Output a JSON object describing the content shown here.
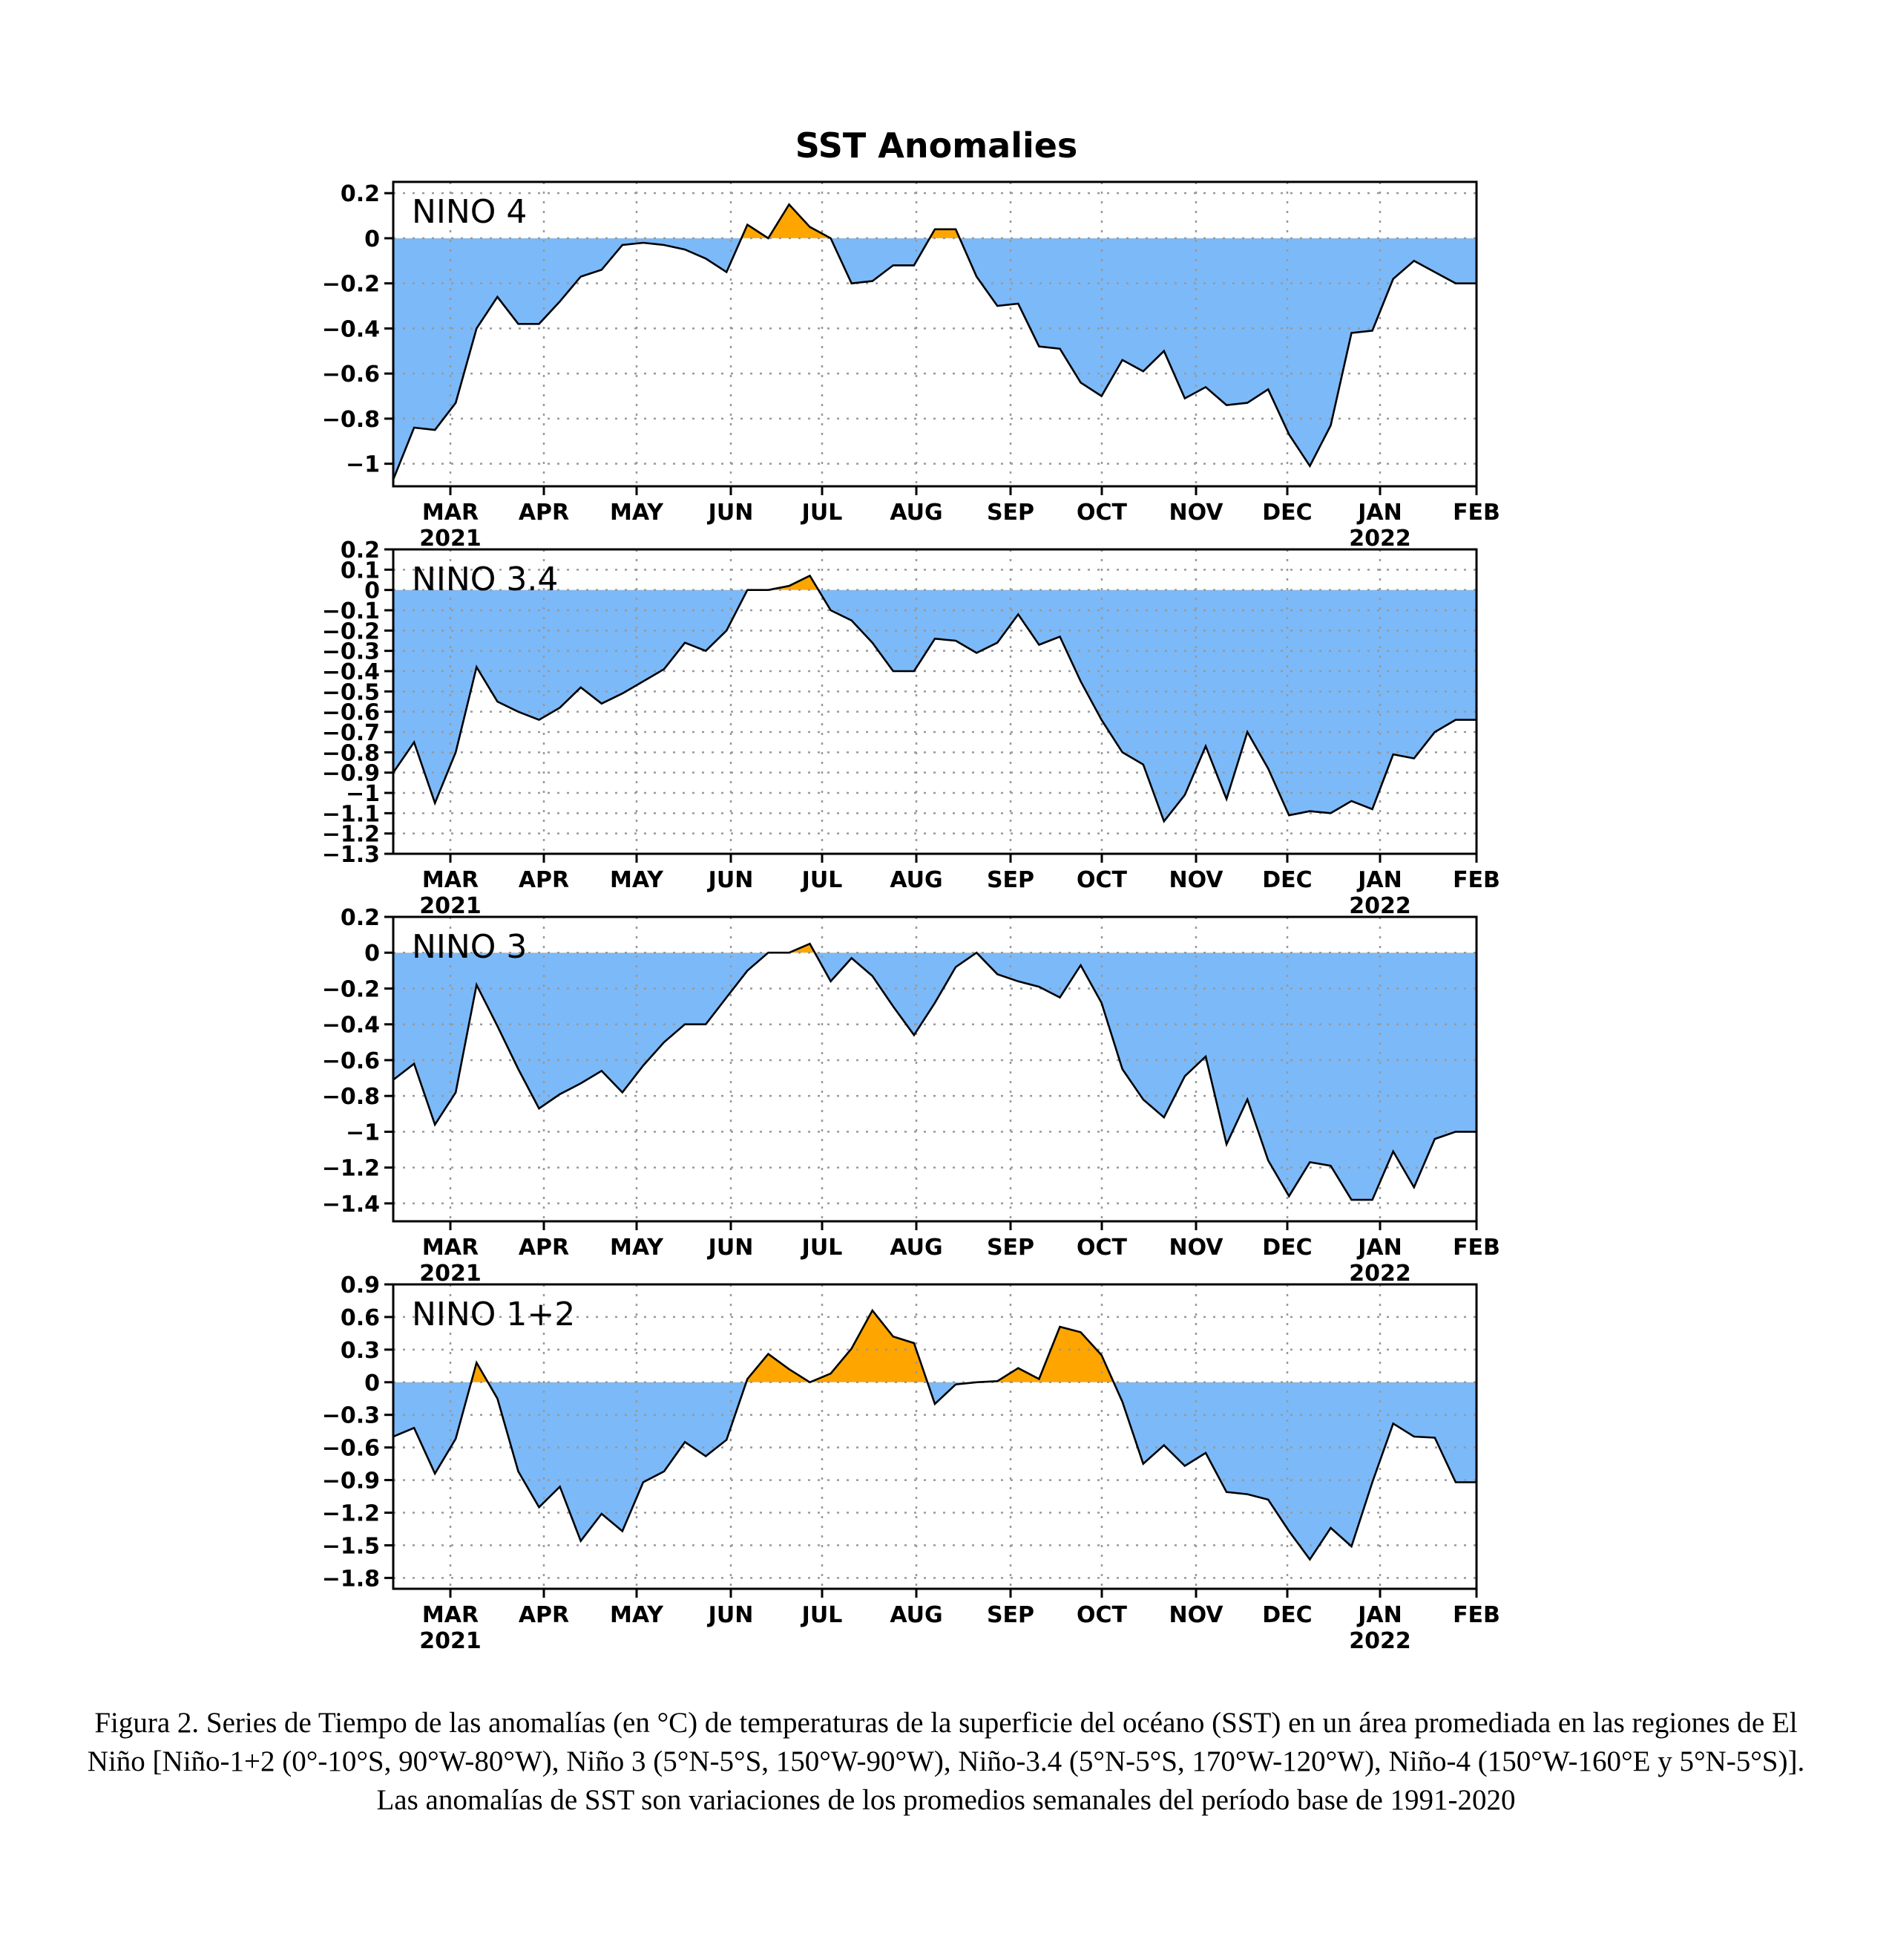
{
  "figure": {
    "title": "SST Anomalies",
    "caption": "Figura 2. Series de Tiempo de las anomalías (en °C) de temperaturas de la superficie del océano (SST) en un área promediada en las regiones de El Niño [Niño-1+2 (0°-10°S, 90°W-80°W), Niño 3 (5°N-5°S, 150°W-90°W), Niño-3.4 (5°N-5°S, 170°W-120°W), Niño-4 (150°W-160°E y 5°N-5°S)]. Las anomalías de SST son variaciones de los promedios semanales del período base de 1991-2020",
    "x_axis": {
      "months": [
        "MAR",
        "APR",
        "MAY",
        "JUN",
        "JUL",
        "AUG",
        "SEP",
        "OCT",
        "NOV",
        "DEC",
        "JAN",
        "FEB"
      ],
      "years": [
        {
          "label": "2021",
          "under": "MAR"
        },
        {
          "label": "2022",
          "under": "JAN"
        }
      ]
    },
    "colors": {
      "positive": "#ffa500",
      "negative": "#7cb9f8",
      "line": "#000000",
      "grid": "#999999"
    }
  },
  "chart_data": [
    {
      "type": "area",
      "label": "NINO 4",
      "ylim": [
        -1.1,
        0.25
      ],
      "yticks": [
        0.2,
        0,
        -0.2,
        -0.4,
        -0.6,
        -0.8,
        -1
      ],
      "ytick_labels": [
        "0.2",
        "0",
        "-0.2",
        "-0.4",
        "-0.6",
        "-0.8",
        "-1"
      ],
      "week": [
        0,
        1,
        2,
        3,
        4,
        5,
        6,
        7,
        8,
        9,
        10,
        11,
        12,
        13,
        14,
        15,
        16,
        17,
        18,
        19,
        20,
        21,
        22,
        23,
        24,
        25,
        26,
        27,
        28,
        29,
        30,
        31,
        32,
        33,
        34,
        35,
        36,
        37,
        38,
        39,
        40,
        41,
        42,
        43,
        44,
        45,
        46,
        47,
        48,
        49,
        50,
        51,
        52
      ],
      "values": [
        -1.07,
        -0.84,
        -0.85,
        -0.73,
        -0.4,
        -0.26,
        -0.38,
        -0.38,
        -0.28,
        -0.17,
        -0.14,
        -0.03,
        -0.02,
        -0.03,
        -0.05,
        -0.09,
        -0.15,
        0.06,
        0.0,
        0.15,
        0.05,
        0.0,
        -0.2,
        -0.19,
        -0.12,
        -0.12,
        0.04,
        0.04,
        -0.17,
        -0.3,
        -0.29,
        -0.48,
        -0.49,
        -0.64,
        -0.7,
        -0.54,
        -0.59,
        -0.5,
        -0.71,
        -0.66,
        -0.74,
        -0.73,
        -0.67,
        -0.87,
        -1.01,
        -0.83,
        -0.42,
        -0.41,
        -0.18,
        -0.1,
        -0.15,
        -0.2,
        -0.2
      ]
    },
    {
      "type": "area",
      "label": "NINO 3.4",
      "ylim": [
        -1.3,
        0.2
      ],
      "yticks": [
        0.2,
        0.1,
        0,
        -0.1,
        -0.2,
        -0.3,
        -0.4,
        -0.5,
        -0.6,
        -0.7,
        -0.8,
        -0.9,
        -1,
        -1.1,
        -1.2,
        -1.3
      ],
      "ytick_labels": [
        "0.2",
        "0.1",
        "0",
        "-0.1",
        "-0.2",
        "-0.3",
        "-0.4",
        "-0.5",
        "-0.6",
        "-0.7",
        "-0.8",
        "-0.9",
        "-1",
        "-1.1",
        "-1.2",
        "-1.3"
      ],
      "week": [
        0,
        1,
        2,
        3,
        4,
        5,
        6,
        7,
        8,
        9,
        10,
        11,
        12,
        13,
        14,
        15,
        16,
        17,
        18,
        19,
        20,
        21,
        22,
        23,
        24,
        25,
        26,
        27,
        28,
        29,
        30,
        31,
        32,
        33,
        34,
        35,
        36,
        37,
        38,
        39,
        40,
        41,
        42,
        43,
        44,
        45,
        46,
        47,
        48,
        49,
        50,
        51,
        52
      ],
      "values": [
        -0.9,
        -0.75,
        -1.05,
        -0.8,
        -0.38,
        -0.55,
        -0.6,
        -0.64,
        -0.58,
        -0.48,
        -0.56,
        -0.51,
        -0.45,
        -0.39,
        -0.26,
        -0.3,
        -0.2,
        0.0,
        0.0,
        0.02,
        0.07,
        -0.1,
        -0.15,
        -0.26,
        -0.4,
        -0.4,
        -0.24,
        -0.25,
        -0.31,
        -0.26,
        -0.12,
        -0.27,
        -0.23,
        -0.45,
        -0.64,
        -0.8,
        -0.86,
        -1.14,
        -1.01,
        -0.77,
        -1.03,
        -0.7,
        -0.88,
        -1.11,
        -1.09,
        -1.1,
        -1.04,
        -1.08,
        -0.81,
        -0.83,
        -0.7,
        -0.64,
        -0.64
      ]
    },
    {
      "type": "area",
      "label": "NINO 3",
      "ylim": [
        -1.5,
        0.2
      ],
      "yticks": [
        0.2,
        0,
        -0.2,
        -0.4,
        -0.6,
        -0.8,
        -1,
        -1.2,
        -1.4
      ],
      "ytick_labels": [
        "0.2",
        "0",
        "-0.2",
        "-0.4",
        "-0.6",
        "-0.8",
        "-1",
        "-1.2",
        "-1.4"
      ],
      "week": [
        0,
        1,
        2,
        3,
        4,
        5,
        6,
        7,
        8,
        9,
        10,
        11,
        12,
        13,
        14,
        15,
        16,
        17,
        18,
        19,
        20,
        21,
        22,
        23,
        24,
        25,
        26,
        27,
        28,
        29,
        30,
        31,
        32,
        33,
        34,
        35,
        36,
        37,
        38,
        39,
        40,
        41,
        42,
        43,
        44,
        45,
        46,
        47,
        48,
        49,
        50,
        51,
        52
      ],
      "values": [
        -0.71,
        -0.62,
        -0.96,
        -0.78,
        -0.18,
        -0.41,
        -0.65,
        -0.87,
        -0.79,
        -0.73,
        -0.66,
        -0.78,
        -0.63,
        -0.5,
        -0.4,
        -0.4,
        -0.25,
        -0.1,
        0.0,
        0.0,
        0.05,
        -0.16,
        -0.03,
        -0.13,
        -0.3,
        -0.46,
        -0.28,
        -0.08,
        0.0,
        -0.12,
        -0.16,
        -0.19,
        -0.25,
        -0.07,
        -0.28,
        -0.65,
        -0.82,
        -0.92,
        -0.69,
        -0.58,
        -1.07,
        -0.82,
        -1.16,
        -1.36,
        -1.17,
        -1.19,
        -1.38,
        -1.38,
        -1.11,
        -1.31,
        -1.04,
        -1.0,
        -1.0
      ]
    },
    {
      "type": "area",
      "label": "NINO 1+2",
      "ylim": [
        -1.9,
        0.9
      ],
      "yticks": [
        0.9,
        0.6,
        0.3,
        0,
        -0.3,
        -0.6,
        -0.9,
        -1.2,
        -1.5,
        -1.8
      ],
      "ytick_labels": [
        "0.9",
        "0.6",
        "0.3",
        "0",
        "-0.3",
        "-0.6",
        "-0.9",
        "-1.2",
        "-1.5",
        "-1.8"
      ],
      "week": [
        0,
        1,
        2,
        3,
        4,
        5,
        6,
        7,
        8,
        9,
        10,
        11,
        12,
        13,
        14,
        15,
        16,
        17,
        18,
        19,
        20,
        21,
        22,
        23,
        24,
        25,
        26,
        27,
        28,
        29,
        30,
        31,
        32,
        33,
        34,
        35,
        36,
        37,
        38,
        39,
        40,
        41,
        42,
        43,
        44,
        45,
        46,
        47,
        48,
        49,
        50,
        51,
        52
      ],
      "values": [
        -0.5,
        -0.42,
        -0.84,
        -0.52,
        0.18,
        -0.15,
        -0.82,
        -1.15,
        -0.96,
        -1.46,
        -1.21,
        -1.37,
        -0.92,
        -0.82,
        -0.55,
        -0.68,
        -0.53,
        0.03,
        0.26,
        0.12,
        0.0,
        0.08,
        0.31,
        0.66,
        0.42,
        0.36,
        -0.2,
        -0.02,
        0.0,
        0.01,
        0.13,
        0.03,
        0.51,
        0.46,
        0.25,
        -0.18,
        -0.75,
        -0.58,
        -0.77,
        -0.65,
        -1.01,
        -1.03,
        -1.08,
        -1.37,
        -1.63,
        -1.34,
        -1.51,
        -0.92,
        -0.38,
        -0.5,
        -0.51,
        -0.92,
        -0.92
      ]
    }
  ]
}
